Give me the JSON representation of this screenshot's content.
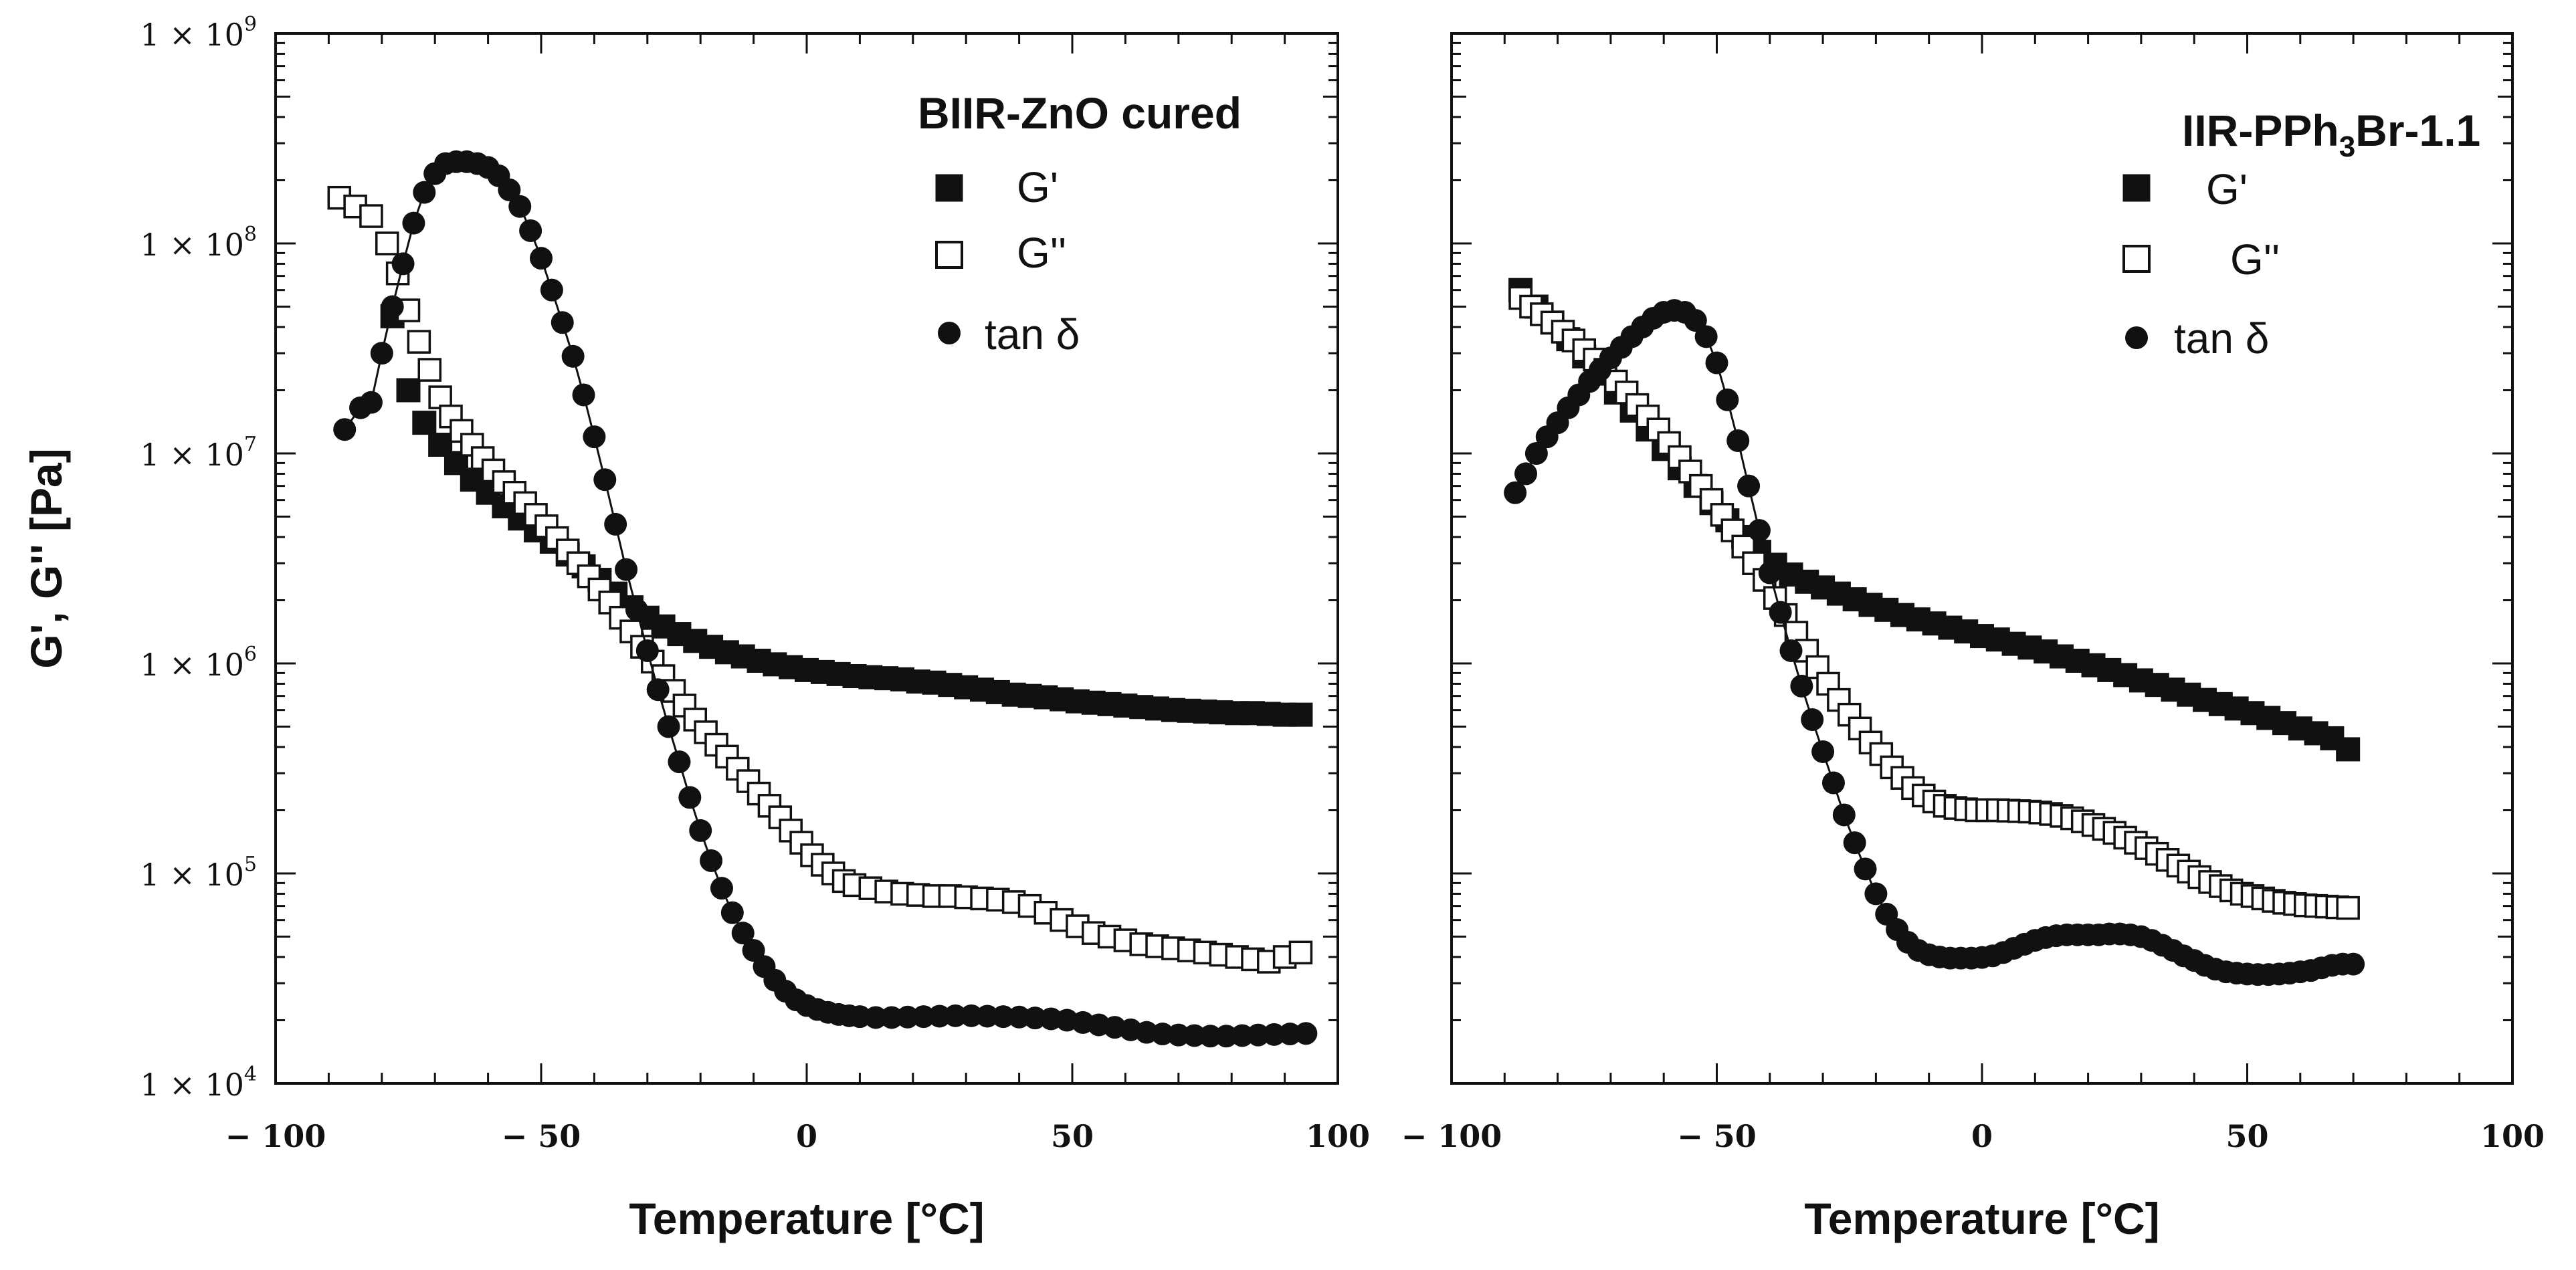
{
  "chart_data": [
    {
      "type": "scatter",
      "panel": "left",
      "xlabel": "Temperature [°C]",
      "ylabel": "G', G'' [Pa]",
      "xlim": [
        -100,
        100
      ],
      "ylim": [
        10000,
        1000000000
      ],
      "yscale": "log",
      "x_ticks": [
        "− 100",
        "− 50",
        "0",
        "50",
        "100"
      ],
      "x_tick_values": [
        -100,
        -50,
        0,
        50,
        100
      ],
      "y_ticks": [
        {
          "value": 1000000000,
          "mantissa": "1 × 10",
          "exp": "9"
        },
        {
          "value": 100000000,
          "mantissa": "1 × 10",
          "exp": "8"
        },
        {
          "value": 10000000,
          "mantissa": "1 × 10",
          "exp": "7"
        },
        {
          "value": 1000000,
          "mantissa": "1 × 10",
          "exp": "6"
        },
        {
          "value": 100000,
          "mantissa": "1 × 10",
          "exp": "5"
        },
        {
          "value": 10000,
          "mantissa": "1 × 10",
          "exp": "4"
        }
      ],
      "legend": {
        "title": "BIIR-ZnO cured",
        "position": "top-right",
        "entries": [
          {
            "marker": "filled-square",
            "label": "G'"
          },
          {
            "marker": "open-square",
            "label": "G''"
          },
          {
            "marker": "filled-circle",
            "label": "tan δ"
          }
        ]
      },
      "series": [
        {
          "name": "G'",
          "marker": "filled-square",
          "x": [
            -78,
            -75,
            -72,
            -69,
            -66,
            -63,
            -60,
            -57,
            -54,
            -51,
            -48,
            -45,
            -42,
            -39,
            -36,
            -33,
            -30,
            -27,
            -24,
            -21,
            -18,
            -15,
            -12,
            -9,
            -6,
            -3,
            0,
            3,
            6,
            9,
            12,
            15,
            18,
            21,
            24,
            27,
            30,
            33,
            36,
            39,
            42,
            45,
            48,
            51,
            54,
            57,
            60,
            63,
            66,
            69,
            72,
            75,
            78,
            81,
            84,
            87,
            90,
            93
          ],
          "values": [
            45000000,
            20000000,
            14000000,
            11000000,
            9000000,
            7500000,
            6500000,
            5600000,
            4900000,
            4300000,
            3800000,
            3300000,
            2900000,
            2500000,
            2150000,
            1850000,
            1650000,
            1500000,
            1380000,
            1280000,
            1200000,
            1130000,
            1080000,
            1030000,
            990000,
            960000,
            930000,
            910000,
            890000,
            870000,
            860000,
            850000,
            840000,
            820000,
            810000,
            790000,
            770000,
            750000,
            730000,
            710000,
            700000,
            690000,
            675000,
            660000,
            650000,
            640000,
            630000,
            620000,
            610000,
            600000,
            595000,
            590000,
            585000,
            580000,
            580000,
            575000,
            570000,
            570000
          ]
        },
        {
          "name": "G''",
          "marker": "open-square",
          "x": [
            -88,
            -85,
            -82,
            -79,
            -77,
            -75,
            -73,
            -71,
            -69,
            -67,
            -65,
            -63,
            -61,
            -59,
            -57,
            -55,
            -53,
            -51,
            -49,
            -47,
            -45,
            -43,
            -41,
            -39,
            -37,
            -35,
            -33,
            -31,
            -29,
            -27,
            -25,
            -23,
            -21,
            -19,
            -17,
            -15,
            -13,
            -11,
            -9,
            -7,
            -5,
            -3,
            -1,
            1,
            3,
            5,
            7,
            9,
            12,
            15,
            18,
            21,
            24,
            27,
            30,
            33,
            36,
            39,
            42,
            45,
            48,
            51,
            54,
            57,
            60,
            63,
            66,
            69,
            72,
            75,
            78,
            81,
            84,
            87,
            90,
            93
          ],
          "values": [
            165000000,
            150000000,
            135000000,
            100000000,
            72000000,
            48000000,
            34000000,
            25000000,
            18500000,
            15000000,
            12800000,
            11000000,
            9500000,
            8300000,
            7300000,
            6500000,
            5800000,
            5100000,
            4500000,
            3950000,
            3450000,
            3000000,
            2600000,
            2250000,
            1950000,
            1650000,
            1420000,
            1200000,
            1020000,
            870000,
            740000,
            630000,
            540000,
            470000,
            410000,
            360000,
            315000,
            275000,
            240000,
            210000,
            185000,
            160000,
            140000,
            122000,
            110000,
            100000,
            92000,
            88000,
            85000,
            82000,
            80000,
            79000,
            78000,
            78000,
            77000,
            76000,
            75000,
            73000,
            70000,
            65000,
            60000,
            56000,
            52000,
            50000,
            48000,
            46000,
            45000,
            44000,
            43000,
            42000,
            41000,
            40000,
            39000,
            38000,
            40000,
            42000
          ]
        },
        {
          "name": "tan δ",
          "marker": "filled-circle",
          "x": [
            -87,
            -84,
            -82,
            -80,
            -78,
            -76,
            -74,
            -72,
            -70,
            -68,
            -66,
            -64,
            -62,
            -60,
            -58,
            -56,
            -54,
            -52,
            -50,
            -48,
            -46,
            -44,
            -42,
            -40,
            -38,
            -36,
            -34,
            -32,
            -30,
            -28,
            -26,
            -24,
            -22,
            -20,
            -18,
            -16,
            -14,
            -12,
            -10,
            -8,
            -6,
            -4,
            -2,
            0,
            2,
            4,
            6,
            8,
            10,
            13,
            16,
            19,
            22,
            25,
            28,
            31,
            34,
            37,
            40,
            43,
            46,
            49,
            52,
            55,
            58,
            61,
            64,
            67,
            70,
            73,
            76,
            79,
            82,
            85,
            88,
            91,
            94
          ],
          "values": [
            13000000,
            16500000,
            17500000,
            30000000,
            50000000,
            80000000,
            125000000,
            175000000,
            215000000,
            240000000,
            245000000,
            245000000,
            240000000,
            230000000,
            210000000,
            180000000,
            150000000,
            115000000,
            85000000,
            60000000,
            42000000,
            29000000,
            19000000,
            12000000,
            7500000,
            4600000,
            2800000,
            1800000,
            1150000,
            750000,
            500000,
            340000,
            230000,
            160000,
            115000,
            85000,
            65000,
            52000,
            43000,
            36000,
            31000,
            27500,
            25000,
            23500,
            22500,
            21800,
            21300,
            21000,
            20800,
            20600,
            20600,
            20700,
            20800,
            20900,
            21000,
            21000,
            20900,
            20800,
            20700,
            20500,
            20300,
            20000,
            19500,
            19000,
            18500,
            18000,
            17500,
            17200,
            17000,
            16900,
            16800,
            16800,
            16900,
            17000,
            17100,
            17200,
            17300
          ]
        }
      ]
    },
    {
      "type": "scatter",
      "panel": "right",
      "xlabel": "Temperature [°C]",
      "xlim": [
        -100,
        100
      ],
      "ylim": [
        10000,
        1000000000
      ],
      "yscale": "log",
      "x_ticks": [
        "− 100",
        "− 50",
        "0",
        "50",
        "100"
      ],
      "x_tick_values": [
        -100,
        -50,
        0,
        50,
        100
      ],
      "legend": {
        "title_main": "IIR-PPh",
        "title_sub": "3",
        "title_tail": "Br-1.1",
        "position": "top-right",
        "entries": [
          {
            "marker": "filled-square",
            "label": "G'"
          },
          {
            "marker": "open-square",
            "label": "G''"
          },
          {
            "marker": "filled-circle",
            "label": "tan δ"
          }
        ]
      },
      "series": [
        {
          "name": "G'",
          "marker": "filled-square",
          "x": [
            -87,
            -84,
            -81,
            -78,
            -75,
            -72,
            -69,
            -66,
            -63,
            -60,
            -57,
            -54,
            -51,
            -48,
            -45,
            -42,
            -39,
            -36,
            -33,
            -30,
            -27,
            -24,
            -21,
            -18,
            -15,
            -12,
            -9,
            -6,
            -3,
            0,
            3,
            6,
            9,
            12,
            15,
            18,
            21,
            24,
            27,
            30,
            33,
            36,
            39,
            42,
            45,
            48,
            51,
            54,
            57,
            60,
            63,
            66,
            69
          ],
          "values": [
            60000000,
            50000000,
            42000000,
            35000000,
            29000000,
            24000000,
            19500000,
            16000000,
            13000000,
            10500000,
            8500000,
            7000000,
            5800000,
            4800000,
            4000000,
            3400000,
            2950000,
            2650000,
            2450000,
            2300000,
            2150000,
            2020000,
            1900000,
            1800000,
            1700000,
            1620000,
            1550000,
            1480000,
            1420000,
            1350000,
            1300000,
            1240000,
            1190000,
            1140000,
            1080000,
            1030000,
            980000,
            930000,
            880000,
            830000,
            790000,
            750000,
            710000,
            670000,
            640000,
            610000,
            580000,
            550000,
            520000,
            490000,
            465000,
            440000,
            390000
          ]
        },
        {
          "name": "G''",
          "marker": "open-square",
          "x": [
            -87,
            -85,
            -83,
            -81,
            -79,
            -77,
            -75,
            -73,
            -71,
            -69,
            -67,
            -65,
            -63,
            -61,
            -59,
            -57,
            -55,
            -53,
            -51,
            -49,
            -47,
            -45,
            -43,
            -41,
            -39,
            -37,
            -35,
            -33,
            -31,
            -29,
            -27,
            -25,
            -23,
            -21,
            -19,
            -17,
            -15,
            -13,
            -11,
            -9,
            -7,
            -5,
            -3,
            -1,
            1,
            3,
            5,
            7,
            9,
            11,
            13,
            15,
            17,
            19,
            21,
            23,
            25,
            27,
            29,
            31,
            33,
            35,
            37,
            39,
            41,
            43,
            45,
            47,
            49,
            51,
            53,
            55,
            57,
            59,
            61,
            63,
            65,
            67,
            69
          ],
          "values": [
            55000000,
            50000000,
            46000000,
            42000000,
            38000000,
            34500000,
            31000000,
            28000000,
            25000000,
            22000000,
            19500000,
            17000000,
            15000000,
            13000000,
            11200000,
            9600000,
            8200000,
            7000000,
            6000000,
            5100000,
            4300000,
            3600000,
            3000000,
            2500000,
            2050000,
            1700000,
            1400000,
            1150000,
            960000,
            800000,
            670000,
            570000,
            490000,
            420000,
            370000,
            320000,
            285000,
            255000,
            235000,
            220000,
            210000,
            205000,
            202000,
            200000,
            200000,
            200000,
            199000,
            198000,
            197000,
            195000,
            192000,
            188000,
            183000,
            177000,
            170000,
            163000,
            156000,
            148000,
            140000,
            132000,
            124000,
            116000,
            109000,
            102000,
            96000,
            91000,
            87000,
            83000,
            80000,
            78000,
            76000,
            74000,
            72500,
            71500,
            70500,
            70000,
            69500,
            69000,
            68500
          ]
        },
        {
          "name": "tan δ",
          "marker": "filled-circle",
          "x": [
            -88,
            -86,
            -84,
            -82,
            -80,
            -78,
            -76,
            -74,
            -72,
            -70,
            -68,
            -66,
            -64,
            -62,
            -60,
            -58,
            -56,
            -54,
            -52,
            -50,
            -48,
            -46,
            -44,
            -42,
            -40,
            -38,
            -36,
            -34,
            -32,
            -30,
            -28,
            -26,
            -24,
            -22,
            -20,
            -18,
            -16,
            -14,
            -12,
            -10,
            -8,
            -6,
            -4,
            -2,
            0,
            2,
            4,
            6,
            8,
            10,
            12,
            14,
            16,
            18,
            20,
            22,
            24,
            26,
            28,
            30,
            32,
            34,
            36,
            38,
            40,
            42,
            44,
            46,
            48,
            50,
            52,
            54,
            56,
            58,
            60,
            62,
            64,
            66,
            68,
            70
          ],
          "values": [
            6500000,
            8000000,
            10000000,
            12000000,
            14000000,
            16500000,
            19000000,
            22000000,
            25000000,
            28500000,
            32000000,
            36000000,
            40000000,
            44000000,
            47000000,
            48000000,
            47000000,
            43000000,
            36000000,
            27000000,
            18000000,
            11500000,
            7000000,
            4300000,
            2700000,
            1750000,
            1150000,
            780000,
            540000,
            380000,
            270000,
            190000,
            140000,
            105000,
            80000,
            64000,
            54000,
            47000,
            43000,
            41000,
            40000,
            39500,
            39500,
            39500,
            39800,
            40500,
            42000,
            44000,
            46000,
            48000,
            49500,
            50500,
            51000,
            51000,
            51000,
            51000,
            51500,
            51500,
            51000,
            50000,
            48000,
            45500,
            43000,
            40500,
            38500,
            36500,
            35000,
            34000,
            33500,
            33200,
            33000,
            33000,
            33200,
            33500,
            34000,
            34500,
            35500,
            36500,
            37000,
            37000
          ]
        }
      ]
    }
  ]
}
